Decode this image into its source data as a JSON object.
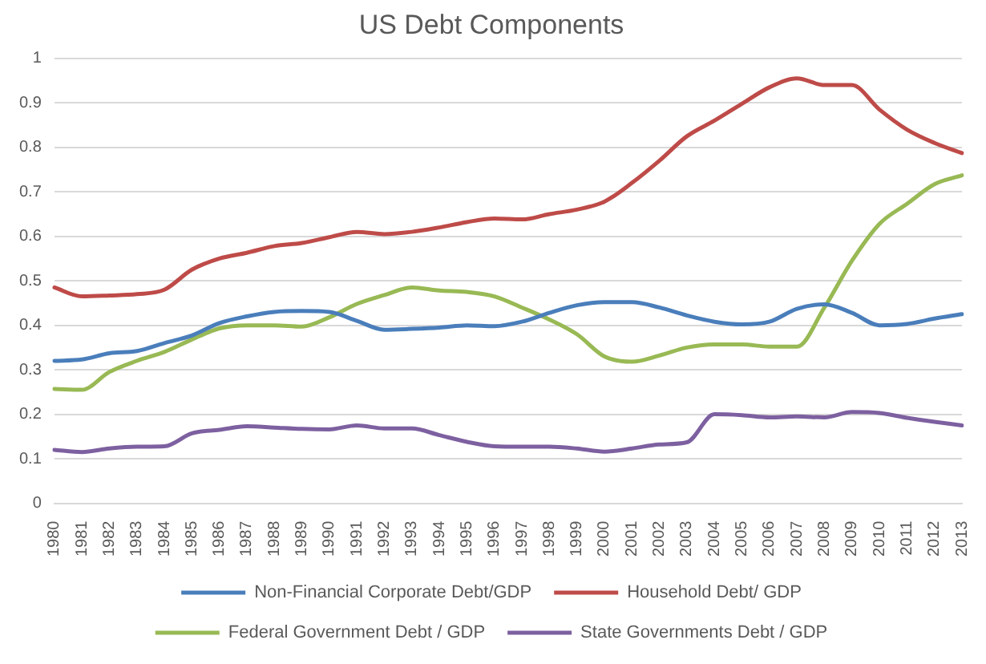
{
  "chart_data": {
    "type": "line",
    "title": "US Debt Components",
    "categories": [
      "1980",
      "1981",
      "1982",
      "1983",
      "1984",
      "1985",
      "1986",
      "1987",
      "1988",
      "1989",
      "1990",
      "1991",
      "1992",
      "1993",
      "1994",
      "1995",
      "1996",
      "1997",
      "1998",
      "1999",
      "2000",
      "2001",
      "2002",
      "2003",
      "2004",
      "2005",
      "2006",
      "2007",
      "2008",
      "2009",
      "2010",
      "2011",
      "2012",
      "2013"
    ],
    "series": [
      {
        "name": "Non-Financial Corporate Debt/GDP",
        "color": "#4a7ebb",
        "values": [
          0.32,
          0.323,
          0.337,
          0.342,
          0.36,
          0.377,
          0.405,
          0.42,
          0.43,
          0.432,
          0.43,
          0.41,
          0.39,
          0.392,
          0.395,
          0.4,
          0.398,
          0.408,
          0.428,
          0.445,
          0.452,
          0.452,
          0.44,
          0.422,
          0.408,
          0.402,
          0.408,
          0.437,
          0.447,
          0.428,
          0.4,
          0.403,
          0.415,
          0.425
        ]
      },
      {
        "name": "Household Debt/ GDP",
        "color": "#be4b48",
        "values": [
          0.485,
          0.465,
          0.467,
          0.47,
          0.48,
          0.525,
          0.55,
          0.563,
          0.578,
          0.585,
          0.598,
          0.61,
          0.605,
          0.61,
          0.62,
          0.632,
          0.64,
          0.638,
          0.65,
          0.66,
          0.678,
          0.72,
          0.77,
          0.825,
          0.86,
          0.898,
          0.935,
          0.955,
          0.94,
          0.94,
          0.885,
          0.84,
          0.81,
          0.787
        ]
      },
      {
        "name": "Federal Government Debt / GDP",
        "color": "#98b954",
        "values": [
          0.257,
          0.255,
          0.295,
          0.32,
          0.34,
          0.368,
          0.393,
          0.4,
          0.4,
          0.397,
          0.418,
          0.448,
          0.468,
          0.485,
          0.478,
          0.475,
          0.465,
          0.44,
          0.413,
          0.38,
          0.33,
          0.318,
          0.332,
          0.35,
          0.357,
          0.357,
          0.352,
          0.352,
          0.44,
          0.545,
          0.628,
          0.673,
          0.717,
          0.737
        ]
      },
      {
        "name": "State Governments Debt / GDP",
        "color": "#7d60a0",
        "values": [
          0.12,
          0.115,
          0.123,
          0.127,
          0.128,
          0.157,
          0.165,
          0.173,
          0.17,
          0.167,
          0.166,
          0.175,
          0.168,
          0.168,
          0.153,
          0.138,
          0.128,
          0.127,
          0.127,
          0.123,
          0.116,
          0.123,
          0.132,
          0.137,
          0.2,
          0.198,
          0.193,
          0.195,
          0.193,
          0.205,
          0.203,
          0.192,
          0.183,
          0.175
        ]
      }
    ],
    "ylim": [
      0,
      1
    ],
    "yticks": [
      0,
      0.1,
      0.2,
      0.3,
      0.4,
      0.5,
      0.6,
      0.7,
      0.8,
      0.9,
      1
    ],
    "grid": "y",
    "legend": "bottom",
    "marker": "none",
    "line_style": "solid"
  }
}
